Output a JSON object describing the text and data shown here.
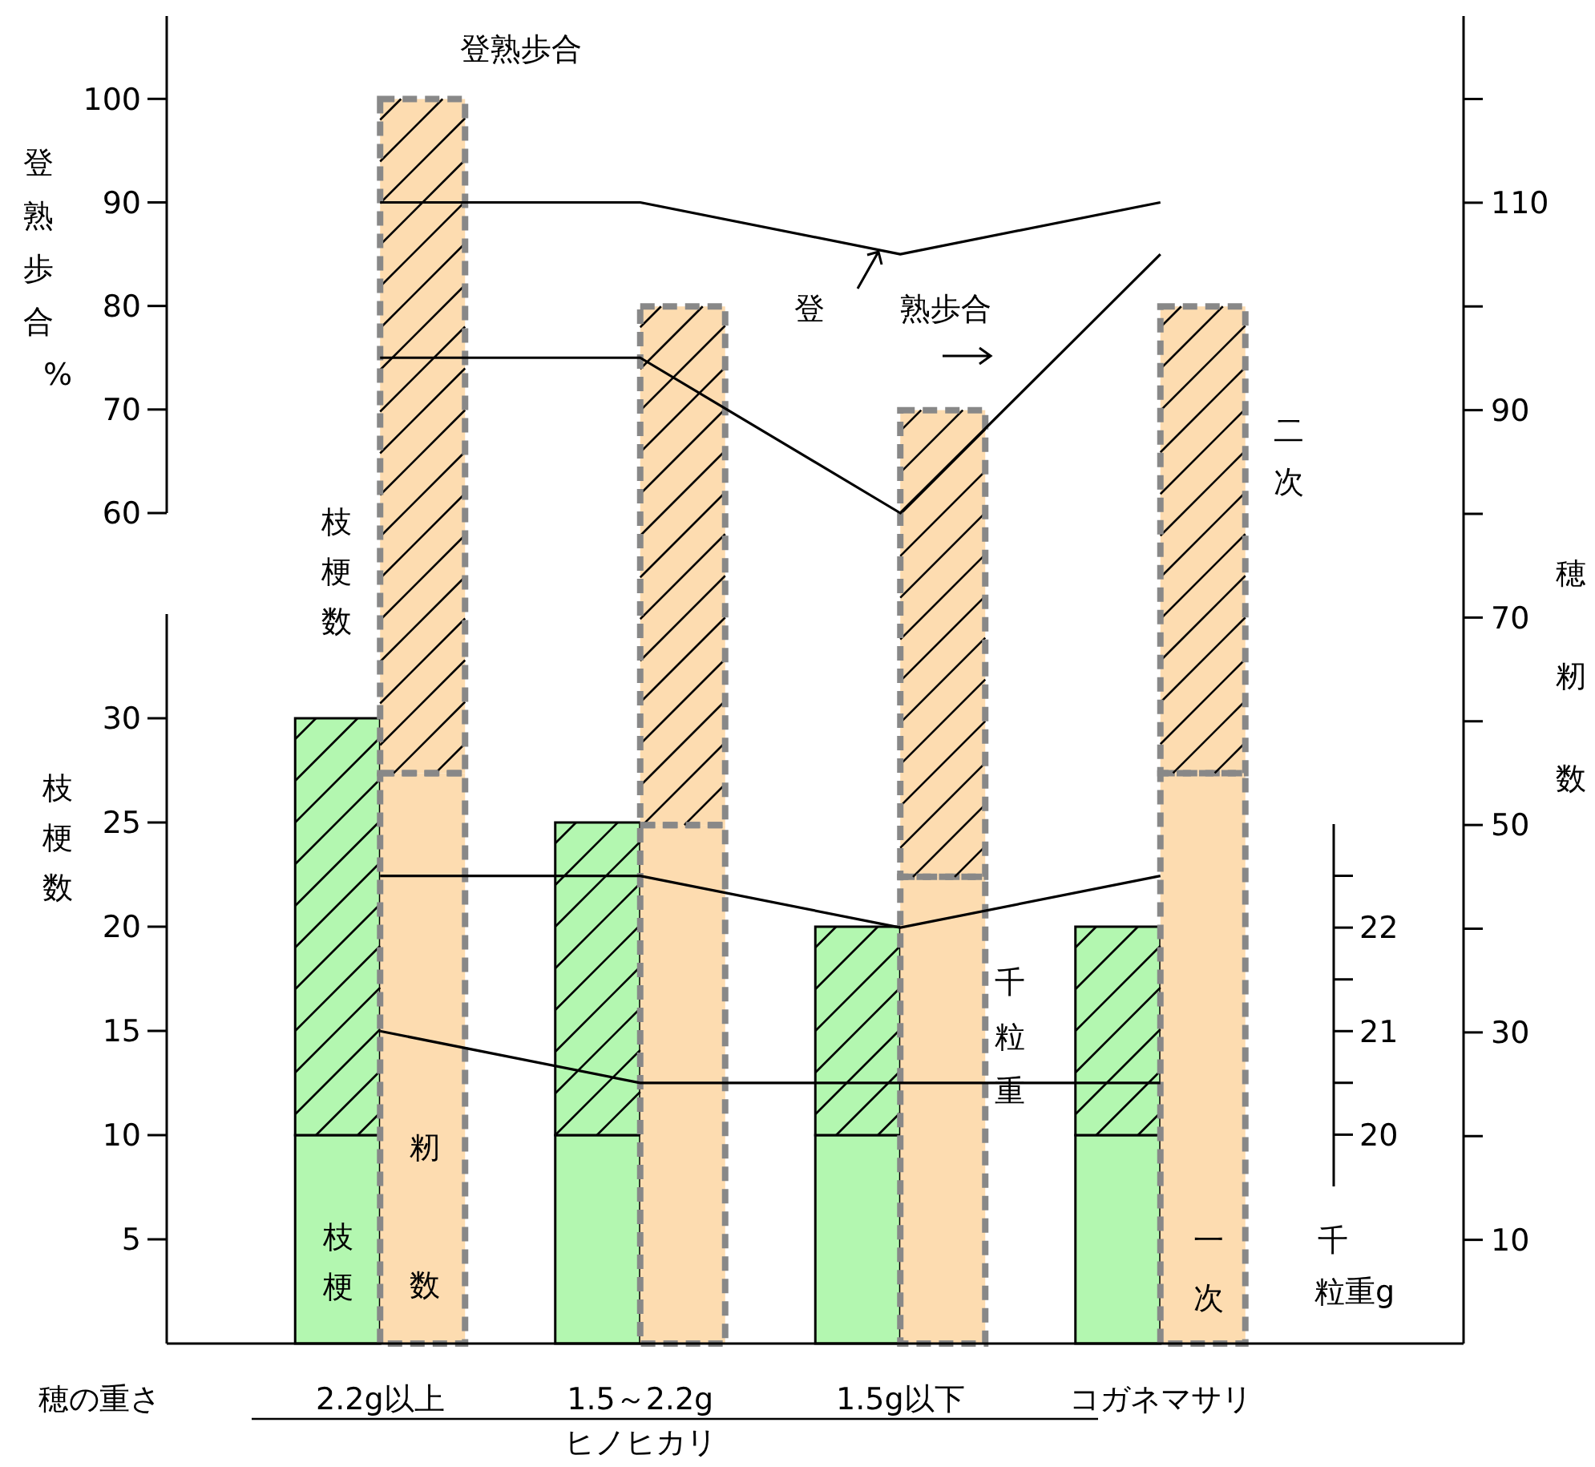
{
  "chart_data": [
    {
      "type": "bar",
      "stacked": true,
      "categories": [
        "2.2g以上",
        "1.5～2.2g",
        "1.5g以下",
        "コガネマサリ"
      ],
      "series": [
        {
          "axis": "y",
          "color": "#b3f7b0",
          "values": [
            10,
            10,
            10,
            10
          ]
        },
        {
          "axis": "y",
          "color": "#b3f7b0",
          "values": [
            20,
            15,
            10,
            10
          ]
        },
        {
          "axis": "y2",
          "color": "#fddcb0",
          "values": [
            55,
            50,
            45,
            55
          ]
        },
        {
          "axis": "y2",
          "color": "#fddcb0",
          "values": [
            65,
            50,
            45,
            45
          ]
        },
        {
          "type": "line",
          "axis": "y3",
          "color": "#000000",
          "values": [
            22.5,
            22.5,
            22,
            22.5
          ]
        },
        {
          "type": "line",
          "axis": "y3",
          "color": "#000000",
          "values": [
            21,
            20.5,
            20.5,
            20.5
          ]
        }
      ],
      "xlabel": "穂の重さ",
      "ylabel": "枝梗数",
      "y2label": "穂籾数",
      "y3label": "千粒重g",
      "ylim": [
        0,
        35
      ],
      "yticks": [
        5,
        10,
        15,
        20,
        25,
        30
      ],
      "y2lim": [
        0,
        128
      ],
      "y2ticks": [
        10,
        {
          "value": 20,
          "label": null
        },
        30,
        {
          "value": 40,
          "label": null
        },
        50,
        {
          "value": 60,
          "label": null
        },
        70,
        {
          "value": 80,
          "label": null
        },
        90,
        {
          "value": 100,
          "label": null
        },
        110,
        {
          "value": 120,
          "label": null
        }
      ],
      "y3lim": [
        19.5,
        23
      ],
      "y3ticks": [
        20,
        21,
        22
      ],
      "annotations": [
        "枝梗数",
        "枝梗",
        "籾",
        "数",
        "二次",
        "一次",
        "千粒重",
        "ヒノヒカリ"
      ]
    },
    {
      "type": "line",
      "tick_labels": "y",
      "series": [
        {
          "color": "#000000",
          "values": [
            90,
            90,
            85,
            90
          ]
        },
        {
          "color": "#000000",
          "values": [
            75,
            75,
            60,
            85
          ]
        }
      ],
      "ylabel": "登熟歩合%",
      "ylim": [
        60,
        108
      ],
      "yticks": [
        60,
        70,
        80,
        90,
        100
      ],
      "annotations": [
        "登熟歩合",
        "登",
        "熟歩合"
      ]
    }
  ]
}
